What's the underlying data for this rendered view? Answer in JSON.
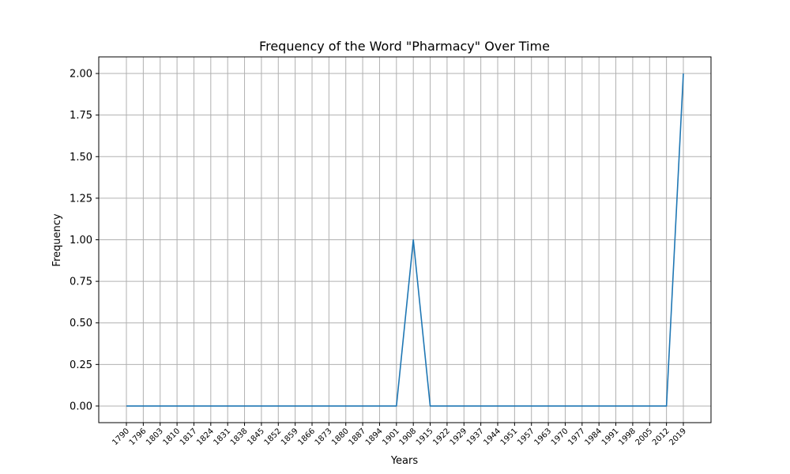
{
  "chart_data": {
    "type": "line",
    "title": "Frequency of the Word \"Pharmacy\" Over Time",
    "xlabel": "Years",
    "ylabel": "Frequency",
    "ylim": [
      -0.1,
      2.1
    ],
    "y_ticks": [
      0.0,
      0.25,
      0.5,
      0.75,
      1.0,
      1.25,
      1.5,
      1.75,
      2.0
    ],
    "y_tick_labels": [
      "0.00",
      "0.25",
      "0.50",
      "0.75",
      "1.00",
      "1.25",
      "1.50",
      "1.75",
      "2.00"
    ],
    "x": [
      1790,
      1796,
      1803,
      1810,
      1817,
      1824,
      1831,
      1838,
      1845,
      1852,
      1859,
      1866,
      1873,
      1880,
      1887,
      1894,
      1901,
      1908,
      1915,
      1922,
      1929,
      1937,
      1944,
      1951,
      1957,
      1963,
      1970,
      1977,
      1984,
      1991,
      1998,
      2005,
      2012,
      2019
    ],
    "grid": true,
    "series": [
      {
        "color": "#1f77b4",
        "values": [
          0,
          0,
          0,
          0,
          0,
          0,
          0,
          0,
          0,
          0,
          0,
          0,
          0,
          0,
          0,
          0,
          0,
          1,
          0,
          0,
          0,
          0,
          0,
          0,
          0,
          0,
          0,
          0,
          0,
          0,
          0,
          0,
          0,
          2
        ]
      }
    ]
  }
}
